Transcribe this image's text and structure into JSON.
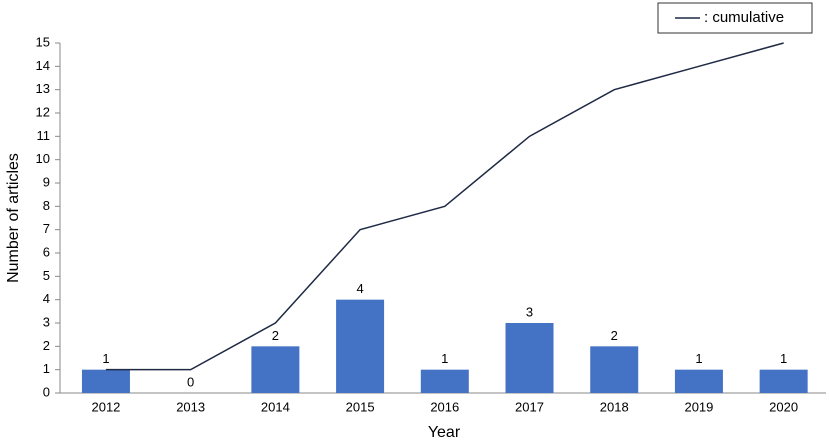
{
  "chart_data": {
    "type": "bar",
    "x_label": "Year",
    "y_label": "Number of articles",
    "categories": [
      "2012",
      "2013",
      "2014",
      "2015",
      "2016",
      "2017",
      "2018",
      "2019",
      "2020"
    ],
    "series": [
      {
        "type": "bar",
        "color": "#4472c4",
        "values": [
          1,
          0,
          2,
          4,
          1,
          3,
          2,
          1,
          1
        ]
      },
      {
        "type": "line",
        "name": ": cumulative",
        "color": "#1f2a44",
        "values": [
          1,
          1,
          3,
          7,
          8,
          11,
          13,
          14,
          15
        ]
      }
    ],
    "ylim": [
      0,
      15
    ],
    "yticks": [
      0,
      1,
      2,
      3,
      4,
      5,
      6,
      7,
      8,
      9,
      10,
      11,
      12,
      13,
      14,
      15
    ],
    "grid": false,
    "legend": "top-right"
  }
}
